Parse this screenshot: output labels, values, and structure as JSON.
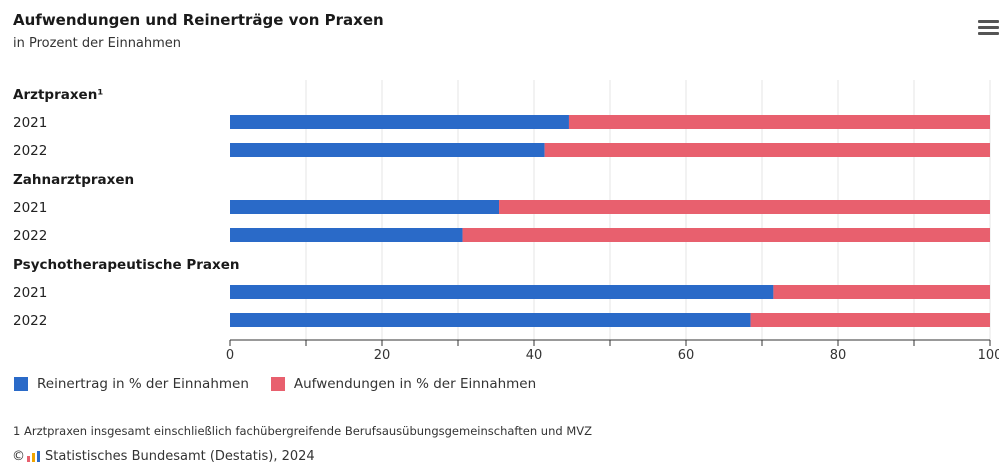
{
  "header": {
    "title": "Aufwendungen und Reinerträge von Praxen",
    "subtitle": "in Prozent der Einnahmen"
  },
  "menu": {
    "icon": "hamburger-menu-icon"
  },
  "colors": {
    "reinertrag": "#2a6ac8",
    "aufwendungen": "#e8606e"
  },
  "legend": {
    "reinertrag": "Reinertrag in % der Einnahmen",
    "aufwendungen": "Aufwendungen in % der Einnahmen"
  },
  "footnote": "1 Arztpraxen insgesamt einschließlich fachübergreifende Berufsausübungsgemeinschaften und MVZ",
  "source": {
    "copyright": "©",
    "logo_icon": "destatis-logo-icon",
    "text": "Statistisches Bundesamt (Destatis), 2024"
  },
  "chart_data": {
    "type": "bar",
    "orientation": "horizontal",
    "stacked": true,
    "groups": [
      {
        "label": "Arztpraxen¹",
        "rows": [
          {
            "year": "2021",
            "reinertrag": 44.6,
            "aufwendungen": 55.4
          },
          {
            "year": "2022",
            "reinertrag": 41.4,
            "aufwendungen": 58.6
          }
        ]
      },
      {
        "label": "Zahnarztpraxen",
        "rows": [
          {
            "year": "2021",
            "reinertrag": 35.4,
            "aufwendungen": 64.6
          },
          {
            "year": "2022",
            "reinertrag": 30.6,
            "aufwendungen": 69.4
          }
        ]
      },
      {
        "label": "Psychotherapeutische Praxen",
        "rows": [
          {
            "year": "2021",
            "reinertrag": 71.5,
            "aufwendungen": 28.5
          },
          {
            "year": "2022",
            "reinertrag": 68.5,
            "aufwendungen": 31.5
          }
        ]
      }
    ],
    "series": [
      {
        "name": "Reinertrag in % der Einnahmen",
        "key": "reinertrag"
      },
      {
        "name": "Aufwendungen in % der Einnahmen",
        "key": "aufwendungen"
      }
    ],
    "xlim": [
      0,
      100
    ],
    "xticks": [
      0,
      20,
      40,
      60,
      80,
      100
    ],
    "grid": true,
    "legend_position": "bottom-left"
  }
}
